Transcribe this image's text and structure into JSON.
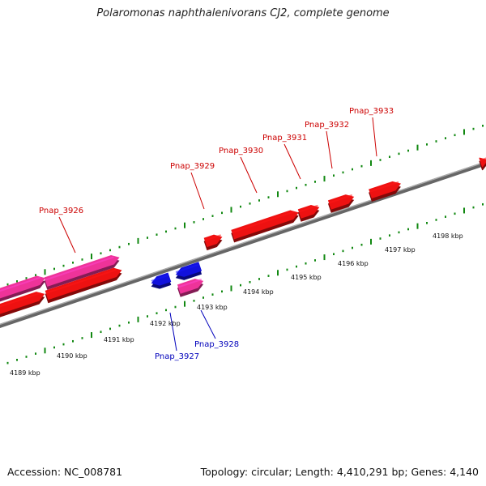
{
  "title": "Polaromonas naphthalenivorans CJ2, complete genome",
  "footer": {
    "accession": "Accession: NC_008781",
    "topology": "Topology: circular; Length: 4,410,291 bp; Genes: 4,140"
  },
  "colors": {
    "forward_gene": "#ee1111",
    "reverse_gene": "#1111dd",
    "rna_gene": "#ee3399",
    "backbone": "#888888",
    "tick": "#118811",
    "forward_label": "#cc0000",
    "reverse_label": "#0000bb"
  },
  "genes_forward": [
    {
      "name": "Pnap_3926",
      "label": "Pnap_3926"
    },
    {
      "name": "Pnap_3929",
      "label": "Pnap_3929"
    },
    {
      "name": "Pnap_3930",
      "label": "Pnap_3930"
    },
    {
      "name": "Pnap_3931",
      "label": "Pnap_3931"
    },
    {
      "name": "Pnap_3932",
      "label": "Pnap_3932"
    },
    {
      "name": "Pnap_3933",
      "label": "Pnap_3933"
    }
  ],
  "genes_reverse": [
    {
      "name": "Pnap_3927",
      "label": "Pnap_3927"
    },
    {
      "name": "Pnap_3928",
      "label": "Pnap_3928"
    }
  ],
  "kbp_labels": [
    "4189 kbp",
    "4190 kbp",
    "4191 kbp",
    "4192 kbp",
    "4193 kbp",
    "4194 kbp",
    "4195 kbp",
    "4196 kbp",
    "4197 kbp",
    "4198 kbp"
  ]
}
